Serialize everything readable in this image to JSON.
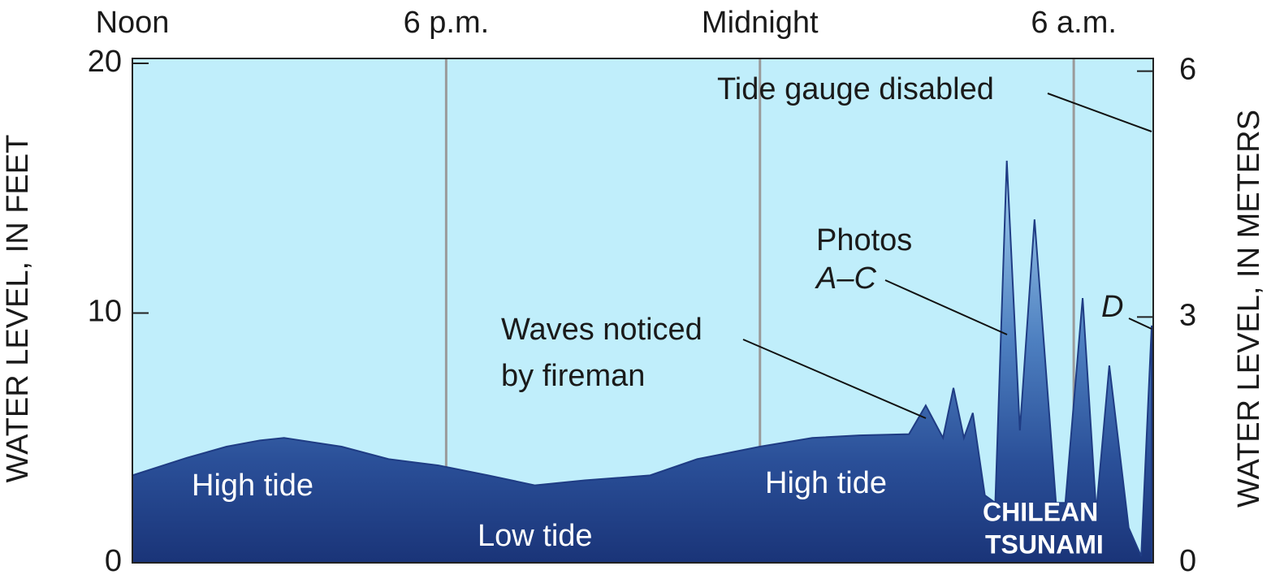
{
  "chart_data": {
    "type": "area",
    "ylabel": "WATER LEVEL, IN FEET",
    "y2label": "WATER LEVEL, IN METERS",
    "x": [
      0,
      1.04,
      1.8,
      2.44,
      2.9,
      4.0,
      4.9,
      5.85,
      6.8,
      7.7,
      8.65,
      9.9,
      10.8,
      12.0,
      13.0,
      13.9,
      14.85,
      15.17,
      15.5,
      15.7,
      15.9,
      16.07,
      16.3,
      16.5,
      16.72,
      16.97,
      17.25,
      17.66,
      17.84,
      18.17,
      18.43,
      18.68,
      19.05,
      19.29,
      19.49
    ],
    "series": [
      {
        "color": "#1f3c84",
        "values": [
          3.5,
          4.2,
          4.65,
          4.9,
          5.0,
          4.65,
          4.15,
          3.9,
          3.5,
          3.1,
          3.3,
          3.5,
          4.15,
          4.65,
          5.0,
          5.1,
          5.15,
          6.3,
          5.0,
          7.0,
          5.0,
          6.0,
          2.7,
          2.4,
          16.1,
          5.3,
          13.75,
          2.4,
          2.4,
          10.6,
          2.05,
          7.9,
          1.4,
          0.26,
          9.5
        ]
      }
    ],
    "xlim": [
      0,
      19.52
    ],
    "xticks": [
      {
        "value": 0,
        "label": "Noon"
      },
      {
        "value": 6,
        "label": "6 p.m."
      },
      {
        "value": 12,
        "label": "Midnight"
      },
      {
        "value": 18,
        "label": "6 a.m."
      }
    ],
    "ylim": [
      0,
      20
    ],
    "yticks": [
      0,
      10,
      20
    ],
    "y2lim": [
      0,
      6.096
    ],
    "y2ticks": [
      0,
      3,
      6
    ],
    "grid": true,
    "background": "#c0eefb",
    "annotations": [
      "Tide gauge disabled",
      "Photos",
      "A–C",
      "Waves noticed",
      "by fireman",
      "High tide",
      "Low tide",
      "High tide",
      "CHILEAN",
      "TSUNAMI",
      "D"
    ]
  }
}
